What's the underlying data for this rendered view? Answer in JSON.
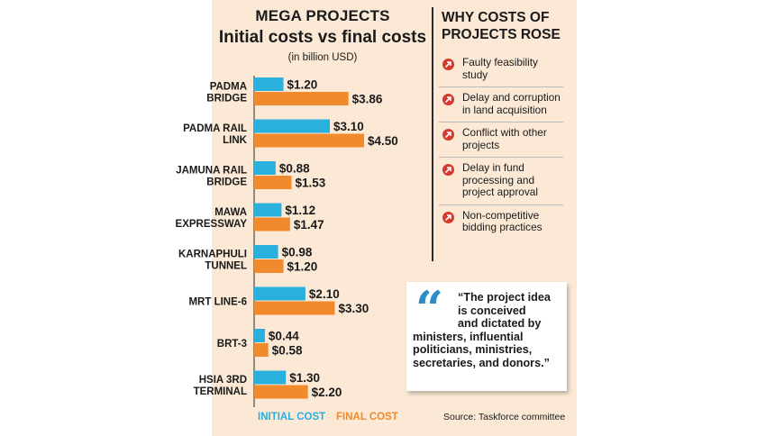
{
  "header": {
    "title": "MEGA PROJECTS",
    "subtitle": "Initial costs vs final costs",
    "unit": "(in billion USD)"
  },
  "chart_data": {
    "type": "bar",
    "orientation": "horizontal",
    "title": "Initial costs vs final costs",
    "ylabel": "(in billion USD)",
    "categories": [
      [
        "PADMA",
        "BRIDGE"
      ],
      [
        "PADMA RAIL",
        "LINK"
      ],
      [
        "JAMUNA RAIL",
        "BRIDGE"
      ],
      [
        "MAWA",
        "EXPRESSWAY"
      ],
      [
        "KARNAPHULI",
        "TUNNEL"
      ],
      [
        "MRT LINE-6"
      ],
      [
        "BRT-3"
      ],
      [
        "HSIA 3RD",
        "TERMINAL"
      ]
    ],
    "series": [
      {
        "name": "INITIAL COST",
        "color": "#2ab0dd",
        "values": [
          1.2,
          3.1,
          0.88,
          1.12,
          0.98,
          2.1,
          0.44,
          1.3
        ],
        "labels": [
          "$1.20",
          "$3.10",
          "$0.88",
          "$1.12",
          "$0.98",
          "$2.10",
          "$0.44",
          "$1.30"
        ]
      },
      {
        "name": "FINAL COST",
        "color": "#f08a2c",
        "values": [
          3.86,
          4.5,
          1.53,
          1.47,
          1.2,
          3.3,
          0.58,
          2.2
        ],
        "labels": [
          "$3.86",
          "$4.50",
          "$1.53",
          "$1.47",
          "$1.20",
          "$3.30",
          "$0.58",
          "$2.20"
        ]
      }
    ],
    "xlim": [
      0,
      4.5
    ],
    "legend": [
      "INITIAL COST",
      "FINAL COST"
    ]
  },
  "reasons": {
    "title_line1": "WHY COSTS OF",
    "title_line2": "PROJECTS ROSE",
    "items": [
      "Faulty feasibility study",
      "Delay and corruption in land acquisition",
      "Conflict with other projects",
      "Delay in fund processing and project approval",
      "Non-competitive bidding practices"
    ]
  },
  "quote": {
    "mark": "“",
    "line1": "“The project idea",
    "line2": "is conceived",
    "line3": "and dictated by",
    "rest": "ministers, influential politicians, ministries, secretaries, and donors.”"
  },
  "legend": {
    "initial": "INITIAL COST",
    "final": "FINAL COST"
  },
  "source": "Source: Taskforce committee"
}
